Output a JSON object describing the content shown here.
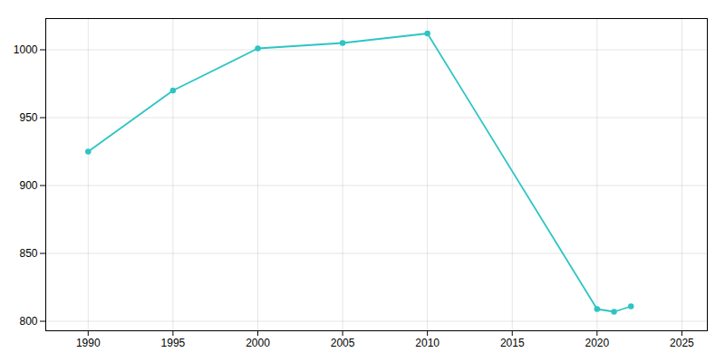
{
  "chart_data": {
    "type": "line",
    "x": [
      1990,
      1995,
      2000,
      2005,
      2010,
      2020,
      2021,
      2022
    ],
    "values": [
      925,
      970,
      1001,
      1005,
      1012,
      809,
      807,
      811
    ],
    "color": "#2ec4c4",
    "marker": "circle",
    "xlim": [
      1987.5,
      2026.5
    ],
    "ylim": [
      793,
      1023
    ],
    "xticks": [
      1990,
      1995,
      2000,
      2005,
      2010,
      2015,
      2020,
      2025
    ],
    "yticks": [
      800,
      850,
      900,
      950,
      1000
    ],
    "grid": true
  }
}
